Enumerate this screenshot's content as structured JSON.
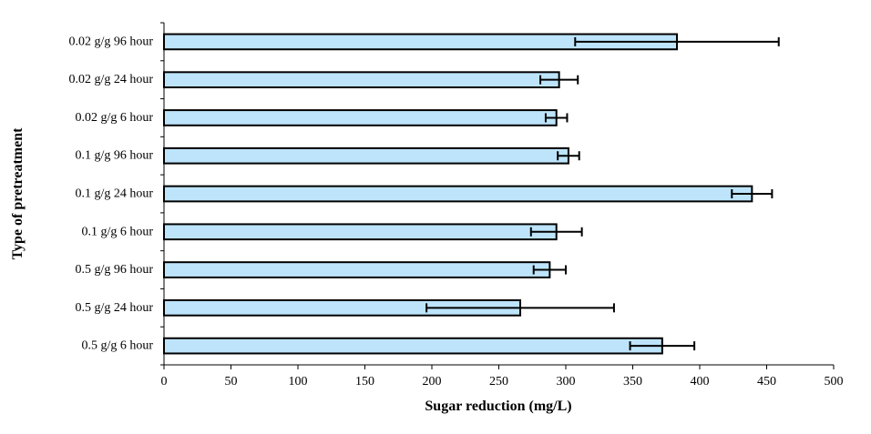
{
  "chart_data": {
    "type": "bar",
    "orientation": "horizontal",
    "title": "",
    "xlabel": "Sugar reduction (mg/L)",
    "ylabel": "Type of pretreatment",
    "xlim": [
      0,
      500
    ],
    "xticks": [
      0,
      50,
      100,
      150,
      200,
      250,
      300,
      350,
      400,
      450,
      500
    ],
    "grid": false,
    "legend": "none",
    "bar_color": "#bde4fb",
    "bar_edge_color": "#000000",
    "categories": [
      "0.5 g/g 6 hour",
      "0.5 g/g 24 hour",
      "0.5 g/g 96 hour",
      "0.1 g/g 6 hour",
      "0.1 g/g 24 hour",
      "0.1 g/g 96 hour",
      "0.02 g/g 6 hour",
      "0.02 g/g 24 hour",
      "0.02 g/g 96 hour"
    ],
    "values": [
      372,
      266,
      288,
      293,
      439,
      302,
      293,
      295,
      383
    ],
    "errors": [
      24,
      70,
      12,
      19,
      15,
      8,
      8,
      14,
      76
    ]
  }
}
